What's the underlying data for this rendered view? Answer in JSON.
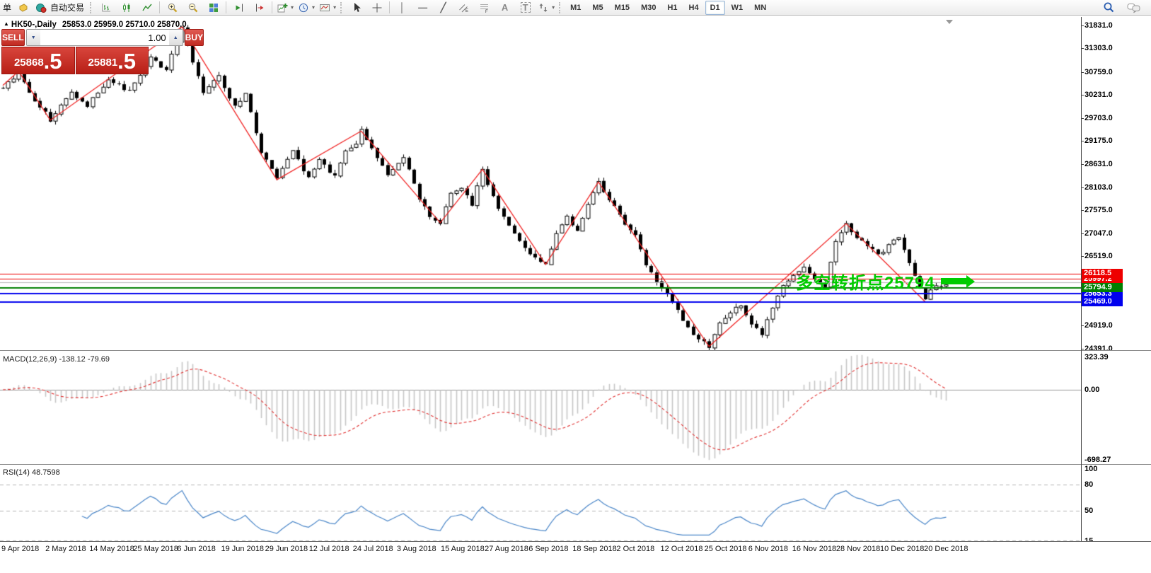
{
  "toolbar": {
    "order_menu_label": "单",
    "autotrading_label": "自动交易",
    "timeframes": [
      "M1",
      "M5",
      "M15",
      "M30",
      "H1",
      "H4",
      "D1",
      "W1",
      "MN"
    ],
    "active_timeframe": "D1"
  },
  "chart": {
    "title_symbol": "HK50-,Daily",
    "title_ohlc": "25853.0 25959.0 25710.0 25870.0",
    "trade_panel": {
      "sell_label": "SELL",
      "buy_label": "BUY",
      "volume": "1.00",
      "sell_price_main": "25868",
      "sell_price_frac": ".5",
      "buy_price_main": "25881",
      "buy_price_frac": ".5"
    },
    "annotation": {
      "text": "多空转折点25794",
      "color": "#00cc00"
    },
    "price_axis_ticks": [
      {
        "label": "31831.0",
        "price": 31831.0
      },
      {
        "label": "31303.0",
        "price": 31303.0
      },
      {
        "label": "30759.0",
        "price": 30759.0
      },
      {
        "label": "30231.0",
        "price": 30231.0
      },
      {
        "label": "29703.0",
        "price": 29703.0
      },
      {
        "label": "29175.0",
        "price": 29175.0
      },
      {
        "label": "28631.0",
        "price": 28631.0
      },
      {
        "label": "28103.0",
        "price": 28103.0
      },
      {
        "label": "27575.0",
        "price": 27575.0
      },
      {
        "label": "27047.0",
        "price": 27047.0
      },
      {
        "label": "26519.0",
        "price": 26519.0
      },
      {
        "label": "24919.0",
        "price": 24919.0
      },
      {
        "label": "24391.0",
        "price": 24391.0
      }
    ]
  },
  "macd": {
    "label": "MACD(12,26,9) -138.12 -79.69",
    "axis": [
      {
        "label": "323.39",
        "value": 323.39
      },
      {
        "label": "0.00",
        "value": 0.0
      },
      {
        "label": "-698.27",
        "value": -698.27
      }
    ]
  },
  "rsi": {
    "label": "RSI(14) 48.7598",
    "axis": [
      {
        "label": "100",
        "value": 100
      },
      {
        "label": "80",
        "value": 80
      },
      {
        "label": "50",
        "value": 50
      },
      {
        "label": "15",
        "value": 15
      }
    ],
    "levels": [
      80,
      50,
      15
    ]
  },
  "time_axis": {
    "labels": [
      "9 Apr 2018",
      "2 May 2018",
      "14 May 2018",
      "25 May 2018",
      "6 Jun 2018",
      "19 Jun 2018",
      "29 Jun 2018",
      "12 Jul 2018",
      "24 Jul 2018",
      "3 Aug 2018",
      "15 Aug 2018",
      "27 Aug 2018",
      "6 Sep 2018",
      "18 Sep 2018",
      "2 Oct 2018",
      "12 Oct 2018",
      "25 Oct 2018",
      "6 Nov 2018",
      "16 Nov 2018",
      "28 Nov 2018",
      "10 Dec 2018",
      "20 Dec 2018"
    ]
  },
  "colors": {
    "zigzag": "#f02020",
    "bull_candle": "#ffffff",
    "bear_candle": "#000000",
    "candle_outline": "#000000",
    "macd_histogram": "#c6c6c6",
    "macd_signal": "#e03030",
    "rsi_line": "#4a86c8",
    "level_dashed": "#b5b5b5",
    "trade_red": "#c22b22",
    "annotation_green": "#00cc00"
  },
  "chart_data": {
    "type": "candlestick",
    "symbol": "HK50",
    "timeframe": "Daily",
    "ohlc_display": {
      "open": 25853.0,
      "high": 25959.0,
      "low": 25710.0,
      "close": 25870.0
    },
    "y_axis_range": [
      24391.0,
      31831.0
    ],
    "num_candles": 180,
    "price_path_pivots": [
      [
        0,
        30400
      ],
      [
        3,
        30750
      ],
      [
        6,
        30100
      ],
      [
        9,
        29660
      ],
      [
        13,
        30300
      ],
      [
        16,
        30000
      ],
      [
        20,
        30600
      ],
      [
        24,
        30300
      ],
      [
        28,
        31100
      ],
      [
        31,
        30800
      ],
      [
        34,
        31800
      ],
      [
        36,
        31000
      ],
      [
        38,
        30300
      ],
      [
        41,
        30650
      ],
      [
        44,
        29950
      ],
      [
        46,
        30300
      ],
      [
        49,
        28900
      ],
      [
        52,
        28300
      ],
      [
        55,
        28950
      ],
      [
        58,
        28300
      ],
      [
        60,
        28750
      ],
      [
        63,
        28350
      ],
      [
        65,
        28900
      ],
      [
        67,
        29100
      ],
      [
        68,
        29400
      ],
      [
        71,
        28800
      ],
      [
        73,
        28350
      ],
      [
        76,
        28800
      ],
      [
        79,
        27850
      ],
      [
        81,
        27450
      ],
      [
        83,
        27300
      ],
      [
        85,
        27950
      ],
      [
        87,
        28100
      ],
      [
        89,
        27700
      ],
      [
        91,
        28500
      ],
      [
        94,
        27600
      ],
      [
        96,
        27200
      ],
      [
        99,
        26700
      ],
      [
        101,
        26450
      ],
      [
        103,
        26350
      ],
      [
        105,
        27050
      ],
      [
        107,
        27450
      ],
      [
        109,
        27100
      ],
      [
        111,
        27750
      ],
      [
        113,
        28200
      ],
      [
        116,
        27650
      ],
      [
        118,
        27250
      ],
      [
        120,
        27000
      ],
      [
        122,
        26350
      ],
      [
        124,
        25950
      ],
      [
        126,
        25700
      ],
      [
        128,
        25250
      ],
      [
        130,
        24850
      ],
      [
        132,
        24600
      ],
      [
        134,
        24450
      ],
      [
        136,
        24950
      ],
      [
        138,
        25250
      ],
      [
        140,
        25350
      ],
      [
        142,
        24950
      ],
      [
        144,
        24700
      ],
      [
        146,
        25350
      ],
      [
        148,
        25850
      ],
      [
        150,
        26050
      ],
      [
        152,
        26250
      ],
      [
        154,
        25950
      ],
      [
        156,
        25850
      ],
      [
        158,
        26850
      ],
      [
        160,
        27250
      ],
      [
        162,
        26950
      ],
      [
        164,
        26750
      ],
      [
        166,
        26550
      ],
      [
        168,
        26750
      ],
      [
        170,
        26950
      ],
      [
        172,
        26350
      ],
      [
        174,
        25750
      ],
      [
        175,
        25500
      ],
      [
        176,
        25700
      ],
      [
        177,
        25880
      ],
      [
        178,
        25800
      ],
      [
        179,
        25870
      ]
    ],
    "zigzag_pivots": [
      [
        0,
        30450
      ],
      [
        3,
        30780
      ],
      [
        9,
        29650
      ],
      [
        34,
        31800
      ],
      [
        52,
        28280
      ],
      [
        68,
        29400
      ],
      [
        83,
        27290
      ],
      [
        91,
        28520
      ],
      [
        103,
        26330
      ],
      [
        113,
        28230
      ],
      [
        134,
        24440
      ],
      [
        160,
        27270
      ],
      [
        175,
        25470
      ]
    ],
    "horizontal_lines": [
      {
        "price": 26118.5,
        "label": "26118.5",
        "color": "#ee0000",
        "width": 1,
        "z": 7
      },
      {
        "price": 25997.2,
        "label": "25997.2",
        "color": "#ee0000",
        "width": 1,
        "z": 3
      },
      {
        "price": 25920.0,
        "label": "",
        "color": "#b8b8b8",
        "width": 1,
        "z": 2
      },
      {
        "price": 25794.9,
        "label": "25794.9",
        "color": "#008000",
        "width": 2,
        "z": 6
      },
      {
        "price": 25653.3,
        "label": "25653.3",
        "color": "#0000ee",
        "width": 2,
        "z": 5
      },
      {
        "price": 25469.0,
        "label": "25469.0",
        "color": "#0000ee",
        "width": 2,
        "z": 4
      }
    ],
    "macd": {
      "params": [
        12,
        26,
        9
      ],
      "last_macd": -138.12,
      "last_signal": -79.69,
      "display_range": [
        -698.27,
        323.39
      ]
    },
    "rsi": {
      "period": 14,
      "last_value": 48.7598,
      "levels": [
        80,
        50,
        15
      ],
      "display_range": [
        0,
        100
      ]
    }
  }
}
